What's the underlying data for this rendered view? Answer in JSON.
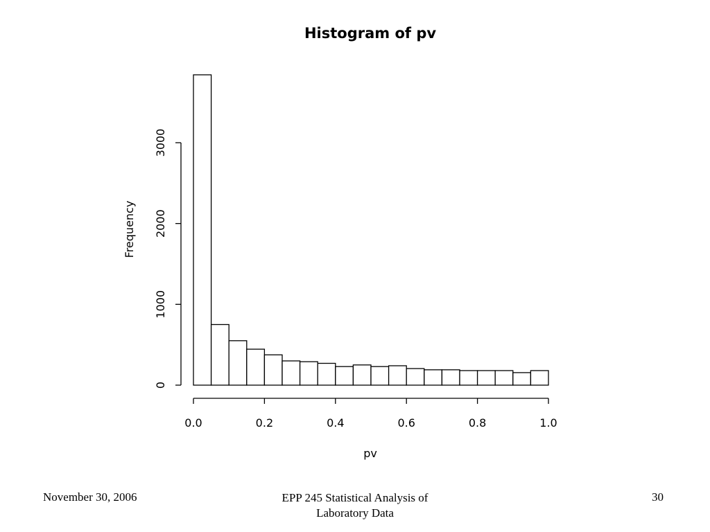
{
  "chart_data": {
    "type": "bar",
    "title": "Histogram of pv",
    "xlabel": "pv",
    "ylabel": "Frequency",
    "bin_edges": [
      0.0,
      0.05,
      0.1,
      0.15,
      0.2,
      0.25,
      0.3,
      0.35,
      0.4,
      0.45,
      0.5,
      0.55,
      0.6,
      0.65,
      0.7,
      0.75,
      0.8,
      0.85,
      0.9,
      0.95,
      1.0
    ],
    "values": [
      3840,
      750,
      550,
      445,
      375,
      300,
      290,
      270,
      230,
      250,
      230,
      240,
      205,
      190,
      190,
      180,
      180,
      180,
      155,
      180
    ],
    "xlim": [
      0.0,
      1.0
    ],
    "ylim": [
      0,
      3000
    ],
    "x_ticks": [
      0.0,
      0.2,
      0.4,
      0.6,
      0.8,
      1.0
    ],
    "x_tick_labels": [
      "0.0",
      "0.2",
      "0.4",
      "0.6",
      "0.8",
      "1.0"
    ],
    "y_ticks": [
      0,
      1000,
      2000,
      3000
    ],
    "y_tick_labels": [
      "0",
      "1000",
      "2000",
      "3000"
    ],
    "grid": false,
    "legend": "none",
    "bar_fill": "#ffffff",
    "bar_stroke": "#000000"
  },
  "footer": {
    "date": "November 30, 2006",
    "course_line1": "EPP 245 Statistical Analysis of",
    "course_line2": "Laboratory Data",
    "page_number": "30"
  }
}
